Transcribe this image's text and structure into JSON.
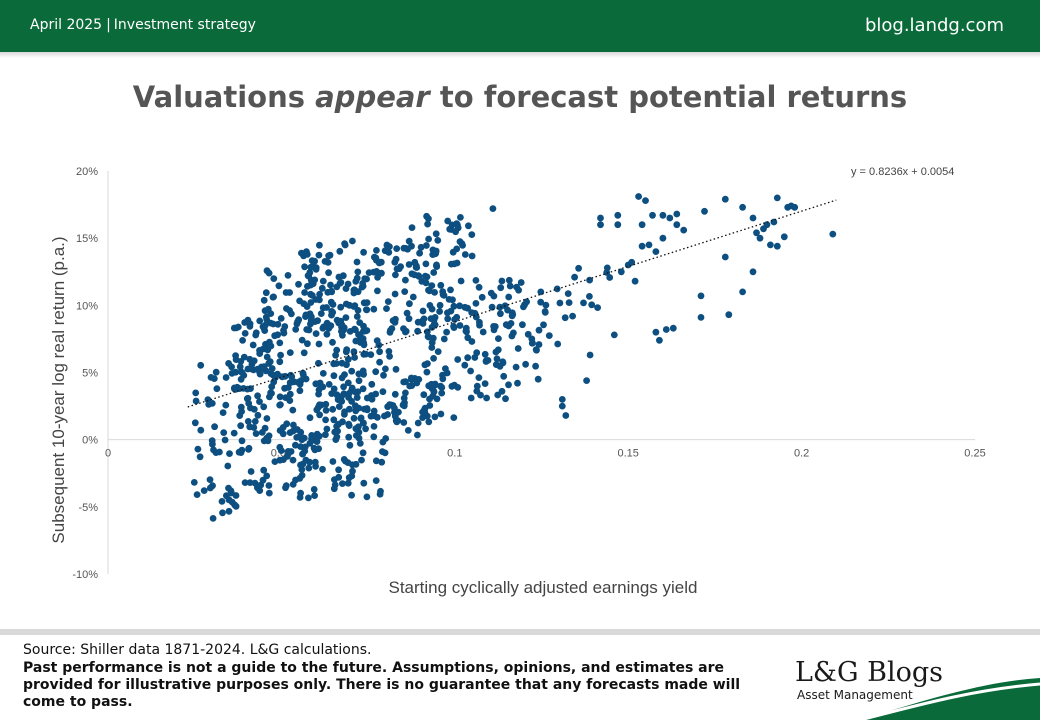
{
  "header": {
    "date": "April 2025",
    "section": "Investment strategy",
    "site": "blog.landg.com"
  },
  "title": {
    "before": "Valuations ",
    "emphasis": "appear",
    "after": " to forecast potential returns"
  },
  "colors": {
    "brand_green": "#0b6a3a",
    "dots": "#0d4f80",
    "title_gray": "#555555"
  },
  "chart_data": {
    "type": "scatter",
    "xlabel": "Starting cyclically adjusted earnings yield",
    "ylabel": "Subsequent 10-year log real return (p.a.)",
    "xlim": [
      0,
      0.25
    ],
    "ylim": [
      -0.1,
      0.2
    ],
    "x_ticks": [
      0,
      0.05,
      0.1,
      0.15,
      0.2,
      0.25
    ],
    "x_tick_labels": [
      "0",
      "0.05",
      "0.1",
      "0.15",
      "0.2",
      "0.25"
    ],
    "y_ticks": [
      0.2,
      0.15,
      0.1,
      0.05,
      0,
      -0.05,
      -0.1
    ],
    "y_tick_labels": [
      "20%",
      "15%",
      "10%",
      "5%",
      "0%",
      "-5%",
      "-10%"
    ],
    "trendline": {
      "slope": 0.8236,
      "intercept": 0.0054,
      "x_range": [
        0.023,
        0.21
      ],
      "label": "y = 0.8236x + 0.0054",
      "style": "dotted"
    },
    "grid": false,
    "clusters": [
      {
        "x": [
          0.023,
          0.04
        ],
        "y": [
          -0.06,
          0.0
        ],
        "n": 30
      },
      {
        "x": [
          0.025,
          0.045
        ],
        "y": [
          -0.01,
          0.06
        ],
        "n": 40
      },
      {
        "x": [
          0.035,
          0.05
        ],
        "y": [
          0.03,
          0.09
        ],
        "n": 45
      },
      {
        "x": [
          0.04,
          0.06
        ],
        "y": [
          -0.04,
          0.01
        ],
        "n": 55
      },
      {
        "x": [
          0.04,
          0.075
        ],
        "y": [
          0.0,
          0.1
        ],
        "n": 160
      },
      {
        "x": [
          0.045,
          0.07
        ],
        "y": [
          0.08,
          0.13
        ],
        "n": 60
      },
      {
        "x": [
          0.055,
          0.075
        ],
        "y": [
          0.1,
          0.15
        ],
        "n": 45
      },
      {
        "x": [
          0.055,
          0.08
        ],
        "y": [
          -0.045,
          0.0
        ],
        "n": 45
      },
      {
        "x": [
          0.06,
          0.085
        ],
        "y": [
          0.0,
          0.04
        ],
        "n": 45
      },
      {
        "x": [
          0.065,
          0.095
        ],
        "y": [
          0.02,
          0.09
        ],
        "n": 70
      },
      {
        "x": [
          0.07,
          0.095
        ],
        "y": [
          0.08,
          0.12
        ],
        "n": 40
      },
      {
        "x": [
          0.075,
          0.095
        ],
        "y": [
          0.12,
          0.145
        ],
        "n": 45
      },
      {
        "x": [
          0.085,
          0.105
        ],
        "y": [
          0.13,
          0.17
        ],
        "n": 35
      },
      {
        "x": [
          0.08,
          0.1
        ],
        "y": [
          0.0,
          0.05
        ],
        "n": 30
      },
      {
        "x": [
          0.09,
          0.115
        ],
        "y": [
          0.03,
          0.11
        ],
        "n": 55
      },
      {
        "x": [
          0.095,
          0.12
        ],
        "y": [
          0.08,
          0.12
        ],
        "n": 40
      },
      {
        "x": [
          0.1,
          0.125
        ],
        "y": [
          0.04,
          0.09
        ],
        "n": 25
      },
      {
        "x": [
          0.115,
          0.135
        ],
        "y": [
          0.07,
          0.115
        ],
        "n": 25
      },
      {
        "x": [
          0.13,
          0.145
        ],
        "y": [
          0.09,
          0.13
        ],
        "n": 12
      }
    ],
    "points": [
      [
        0.111,
        0.172
      ],
      [
        0.131,
        0.03
      ],
      [
        0.131,
        0.025
      ],
      [
        0.132,
        0.018
      ],
      [
        0.138,
        0.044
      ],
      [
        0.139,
        0.063
      ],
      [
        0.142,
        0.165
      ],
      [
        0.142,
        0.16
      ],
      [
        0.147,
        0.167
      ],
      [
        0.147,
        0.16
      ],
      [
        0.146,
        0.078
      ],
      [
        0.148,
        0.125
      ],
      [
        0.15,
        0.13
      ],
      [
        0.151,
        0.132
      ],
      [
        0.152,
        0.118
      ],
      [
        0.153,
        0.181
      ],
      [
        0.155,
        0.178
      ],
      [
        0.154,
        0.16
      ],
      [
        0.154,
        0.144
      ],
      [
        0.156,
        0.145
      ],
      [
        0.157,
        0.167
      ],
      [
        0.158,
        0.14
      ],
      [
        0.158,
        0.08
      ],
      [
        0.159,
        0.074
      ],
      [
        0.16,
        0.167
      ],
      [
        0.16,
        0.15
      ],
      [
        0.161,
        0.082
      ],
      [
        0.162,
        0.165
      ],
      [
        0.163,
        0.083
      ],
      [
        0.164,
        0.16
      ],
      [
        0.166,
        0.156
      ],
      [
        0.164,
        0.168
      ],
      [
        0.172,
        0.17
      ],
      [
        0.171,
        0.107
      ],
      [
        0.171,
        0.091
      ],
      [
        0.178,
        0.179
      ],
      [
        0.179,
        0.093
      ],
      [
        0.178,
        0.136
      ],
      [
        0.183,
        0.11
      ],
      [
        0.183,
        0.173
      ],
      [
        0.186,
        0.165
      ],
      [
        0.186,
        0.125
      ],
      [
        0.187,
        0.154
      ],
      [
        0.188,
        0.15
      ],
      [
        0.189,
        0.157
      ],
      [
        0.19,
        0.16
      ],
      [
        0.192,
        0.162
      ],
      [
        0.191,
        0.145
      ],
      [
        0.193,
        0.18
      ],
      [
        0.193,
        0.144
      ],
      [
        0.195,
        0.151
      ],
      [
        0.196,
        0.173
      ],
      [
        0.197,
        0.174
      ],
      [
        0.198,
        0.173
      ],
      [
        0.209,
        0.153
      ]
    ]
  },
  "footer": {
    "source": "Source: Shiller data 1871-2024. L&G calculations.",
    "disclaimer": "Past performance is not a guide to the future. Assumptions, opinions, and estimates are provided for illustrative purposes only. There is no guarantee that any forecasts made will come to pass.",
    "logo_main": "L&G Blogs",
    "logo_sub": "Asset Management"
  }
}
